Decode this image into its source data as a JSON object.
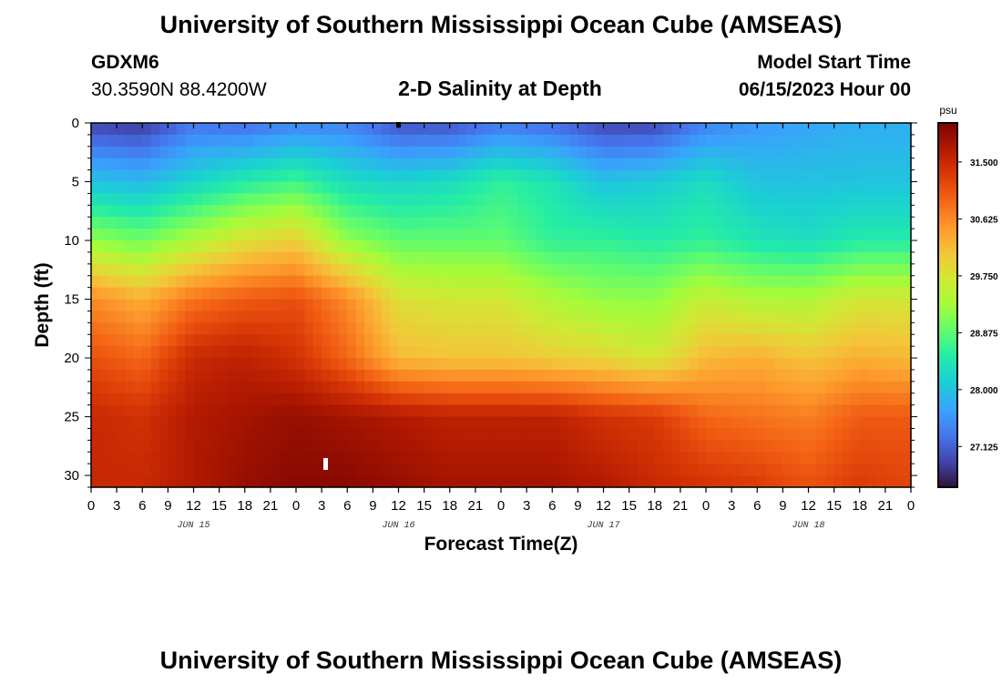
{
  "header": {
    "title": "University of Southern Mississippi Ocean Cube (AMSEAS)",
    "station": "GDXM6",
    "coords": "30.3590N  88.4200W",
    "start_label": "Model Start Time",
    "start_value": "06/15/2023 Hour 00"
  },
  "footer": {
    "title": "University of Southern Mississippi Ocean Cube (AMSEAS)"
  },
  "chart_data": {
    "type": "heatmap",
    "title": "2-D Salinity at Depth",
    "xlabel": "Forecast Time(Z)",
    "ylabel": "Depth (ft)",
    "x_tick_labels": [
      "0",
      "3",
      "6",
      "9",
      "12",
      "15",
      "18",
      "21",
      "0",
      "3",
      "6",
      "9",
      "12",
      "15",
      "18",
      "21",
      "0",
      "3",
      "6",
      "9",
      "12",
      "15",
      "18",
      "21",
      "0",
      "3",
      "6",
      "9",
      "12",
      "15",
      "18",
      "21",
      "0"
    ],
    "x_range_hours": [
      0,
      96
    ],
    "day_labels": [
      {
        "label": "JUN 15",
        "hour": 12
      },
      {
        "label": "JUN 16",
        "hour": 36
      },
      {
        "label": "JUN 17",
        "hour": 60
      },
      {
        "label": "JUN 18",
        "hour": 84
      }
    ],
    "y_ticks": [
      0,
      5,
      10,
      15,
      20,
      25,
      30
    ],
    "y_range": [
      0,
      31
    ],
    "colorbar": {
      "unit": "psu",
      "ticks": [
        "31.500",
        "30.625",
        "29.750",
        "28.875",
        "28.000",
        "27.125"
      ],
      "tick_values": [
        31.5,
        30.625,
        29.75,
        28.875,
        28.0,
        27.125
      ],
      "range": [
        26.5,
        32.1
      ]
    },
    "grid_hours": [
      0,
      6,
      12,
      18,
      24,
      30,
      36,
      42,
      48,
      54,
      60,
      66,
      72,
      78,
      84,
      90,
      96
    ],
    "grid_depths": [
      0,
      5,
      10,
      15,
      20,
      25,
      31
    ],
    "salinity_psu": [
      [
        26.9,
        26.8,
        27.3,
        27.2,
        27.4,
        27.4,
        27.0,
        27.0,
        27.3,
        27.2,
        26.9,
        26.9,
        27.4,
        27.6,
        27.7,
        27.8,
        27.8
      ],
      [
        28.0,
        27.9,
        28.2,
        28.5,
        28.7,
        28.3,
        28.2,
        28.3,
        28.6,
        28.4,
        28.0,
        28.1,
        28.3,
        28.0,
        28.0,
        28.0,
        28.0
      ],
      [
        29.2,
        29.0,
        29.4,
        29.8,
        30.0,
        29.2,
        28.9,
        28.9,
        28.9,
        28.6,
        28.6,
        28.5,
        28.6,
        28.4,
        28.3,
        28.5,
        28.5
      ],
      [
        30.6,
        30.3,
        30.8,
        31.0,
        31.1,
        30.6,
        29.8,
        29.7,
        29.7,
        29.4,
        29.2,
        29.2,
        29.6,
        29.4,
        29.4,
        29.7,
        29.7
      ],
      [
        31.1,
        30.9,
        31.5,
        31.6,
        31.4,
        30.9,
        30.2,
        30.1,
        30.1,
        30.0,
        29.9,
        29.7,
        30.2,
        30.3,
        30.1,
        30.3,
        30.2
      ],
      [
        31.5,
        31.4,
        31.7,
        31.8,
        31.9,
        31.8,
        31.7,
        31.6,
        31.6,
        31.6,
        31.4,
        31.3,
        30.9,
        30.8,
        30.7,
        31.0,
        31.0
      ],
      [
        31.5,
        31.5,
        31.7,
        31.9,
        32.0,
        32.0,
        31.9,
        31.8,
        31.8,
        31.8,
        31.7,
        31.5,
        31.4,
        31.3,
        31.1,
        31.3,
        31.2
      ]
    ]
  }
}
